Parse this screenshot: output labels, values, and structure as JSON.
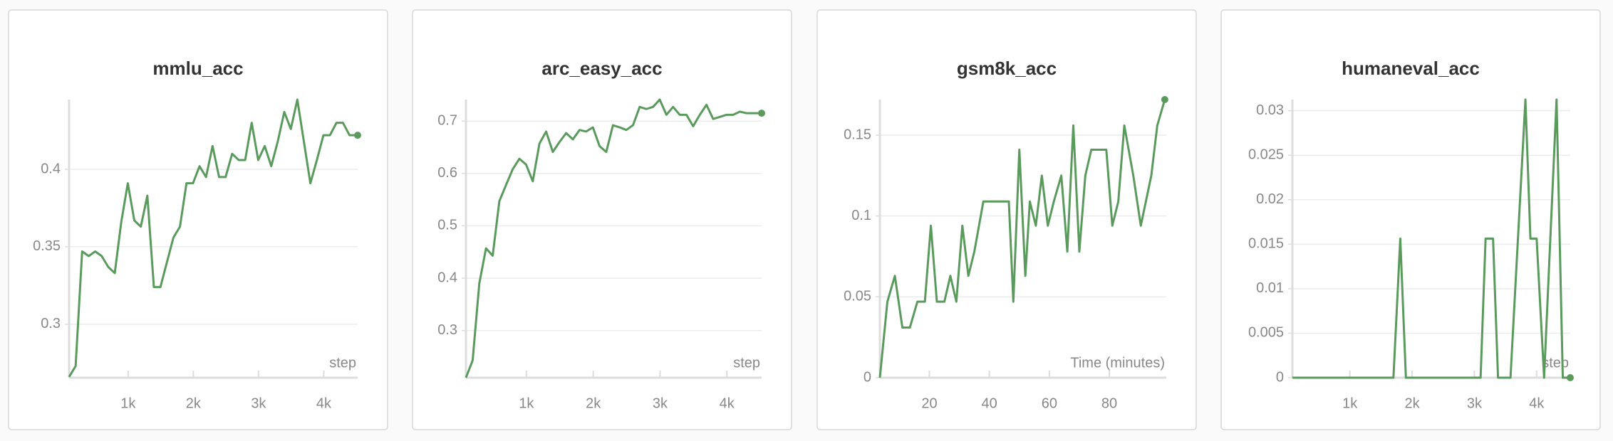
{
  "chart_data": [
    {
      "type": "line",
      "title": "mmlu_acc",
      "xlabel": "step",
      "color": "#5a9a5c",
      "grid": true,
      "x": [
        95,
        195,
        295,
        395,
        495,
        595,
        695,
        795,
        895,
        995,
        1095,
        1195,
        1295,
        1395,
        1495,
        1595,
        1695,
        1795,
        1895,
        1995,
        2095,
        2195,
        2295,
        2395,
        2495,
        2595,
        2695,
        2795,
        2895,
        2995,
        3095,
        3195,
        3295,
        3395,
        3495,
        3595,
        3695,
        3795,
        3895,
        3995,
        4095,
        4195,
        4295,
        4395,
        4520
      ],
      "values": [
        0.266,
        0.273,
        0.347,
        0.344,
        0.347,
        0.344,
        0.337,
        0.333,
        0.366,
        0.391,
        0.367,
        0.363,
        0.383,
        0.324,
        0.324,
        0.34,
        0.356,
        0.363,
        0.391,
        0.391,
        0.402,
        0.395,
        0.415,
        0.395,
        0.395,
        0.41,
        0.406,
        0.406,
        0.43,
        0.406,
        0.415,
        0.402,
        0.418,
        0.437,
        0.426,
        0.445,
        0.418,
        0.391,
        0.406,
        0.422,
        0.422,
        0.43,
        0.43,
        0.422,
        0.422
      ],
      "xlim": [
        95,
        4520
      ],
      "ylim": [
        0.2655,
        0.445
      ],
      "xticks": [
        {
          "value": 1000,
          "label": "1k"
        },
        {
          "value": 2000,
          "label": "2k"
        },
        {
          "value": 3000,
          "label": "3k"
        },
        {
          "value": 4000,
          "label": "4k"
        }
      ],
      "yticks": [
        0.3,
        0.35,
        0.4
      ]
    },
    {
      "type": "line",
      "title": "arc_easy_acc",
      "xlabel": "step",
      "color": "#5a9a5c",
      "grid": true,
      "x": [
        95,
        195,
        295,
        395,
        495,
        595,
        695,
        795,
        895,
        995,
        1095,
        1195,
        1295,
        1395,
        1495,
        1595,
        1695,
        1795,
        1895,
        1995,
        2095,
        2195,
        2295,
        2395,
        2495,
        2595,
        2695,
        2795,
        2895,
        2995,
        3095,
        3195,
        3295,
        3395,
        3495,
        3595,
        3695,
        3795,
        3895,
        3995,
        4095,
        4195,
        4295,
        4395,
        4520
      ],
      "values": [
        0.21,
        0.243,
        0.39,
        0.457,
        0.443,
        0.547,
        0.578,
        0.608,
        0.628,
        0.617,
        0.585,
        0.657,
        0.68,
        0.641,
        0.66,
        0.677,
        0.665,
        0.683,
        0.68,
        0.688,
        0.652,
        0.641,
        0.692,
        0.688,
        0.683,
        0.692,
        0.727,
        0.723,
        0.727,
        0.741,
        0.712,
        0.727,
        0.712,
        0.712,
        0.69,
        0.712,
        0.731,
        0.704,
        0.708,
        0.712,
        0.712,
        0.718,
        0.715,
        0.715,
        0.715
      ],
      "xlim": [
        95,
        4520
      ],
      "ylim": [
        0.21,
        0.741
      ],
      "xticks": [
        {
          "value": 1000,
          "label": "1k"
        },
        {
          "value": 2000,
          "label": "2k"
        },
        {
          "value": 3000,
          "label": "3k"
        },
        {
          "value": 4000,
          "label": "4k"
        }
      ],
      "yticks": [
        0.3,
        0.4,
        0.5,
        0.6,
        0.7
      ]
    },
    {
      "type": "line",
      "title": "gsm8k_acc",
      "xlabel": "Time (minutes)",
      "color": "#5a9a5c",
      "grid": true,
      "x": [
        3.5,
        6,
        8.5,
        11,
        13.5,
        16,
        18.5,
        20.5,
        22.5,
        25,
        27,
        29,
        31,
        33,
        35,
        38,
        41,
        44,
        46.5,
        48,
        50,
        52,
        53.5,
        55.5,
        57.5,
        59.5,
        61.5,
        64,
        66,
        68,
        70,
        72,
        74,
        76.5,
        79,
        81,
        83,
        85,
        88,
        90.5,
        94,
        96,
        98.5
      ],
      "values": [
        0,
        0.047,
        0.063,
        0.031,
        0.031,
        0.047,
        0.047,
        0.094,
        0.047,
        0.047,
        0.063,
        0.047,
        0.094,
        0.063,
        0.078,
        0.109,
        0.109,
        0.109,
        0.109,
        0.047,
        0.141,
        0.063,
        0.109,
        0.094,
        0.125,
        0.094,
        0.109,
        0.125,
        0.078,
        0.156,
        0.078,
        0.125,
        0.141,
        0.141,
        0.141,
        0.094,
        0.109,
        0.156,
        0.125,
        0.094,
        0.125,
        0.156,
        0.172
      ],
      "xlim": [
        3.5,
        99
      ],
      "ylim": [
        0,
        0.172
      ],
      "xticks": [
        20,
        40,
        60,
        80
      ],
      "yticks": [
        0,
        0.05,
        0.1,
        0.15
      ]
    },
    {
      "type": "line",
      "title": "humaneval_acc",
      "xlabel": "step",
      "color": "#5a9a5c",
      "grid": true,
      "x": [
        77,
        1700,
        1810,
        1900,
        3100,
        3180,
        3300,
        3380,
        3580,
        3820,
        3900,
        4000,
        4120,
        4320,
        4420,
        4540
      ],
      "values": [
        0,
        0,
        0.015625,
        0,
        0,
        0.015625,
        0.015625,
        0,
        0,
        0.03125,
        0.015625,
        0.015625,
        0,
        0.03125,
        0,
        0
      ],
      "xlim": [
        77,
        4540
      ],
      "ylim": [
        0,
        0.03125
      ],
      "xticks": [
        {
          "value": 1000,
          "label": "1k"
        },
        {
          "value": 2000,
          "label": "2k"
        },
        {
          "value": 3000,
          "label": "3k"
        },
        {
          "value": 4000,
          "label": "4k"
        }
      ],
      "yticks": [
        0,
        0.005,
        0.01,
        0.015,
        0.02,
        0.025,
        0.03
      ]
    }
  ]
}
